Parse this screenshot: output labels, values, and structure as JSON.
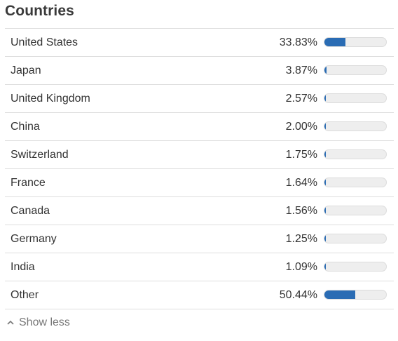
{
  "panel": {
    "title": "Countries",
    "toggle_label": "Show less",
    "toggle_icon": "chevron-up-icon",
    "accent_color": "#2a6cb4",
    "rows": [
      {
        "name": "United States",
        "percent": "33.83%",
        "share": 0.3383
      },
      {
        "name": "Japan",
        "percent": "3.87%",
        "share": 0.0387
      },
      {
        "name": "United Kingdom",
        "percent": "2.57%",
        "share": 0.0257
      },
      {
        "name": "China",
        "percent": "2.00%",
        "share": 0.02
      },
      {
        "name": "Switzerland",
        "percent": "1.75%",
        "share": 0.0175
      },
      {
        "name": "France",
        "percent": "1.64%",
        "share": 0.0164
      },
      {
        "name": "Canada",
        "percent": "1.56%",
        "share": 0.0156
      },
      {
        "name": "Germany",
        "percent": "1.25%",
        "share": 0.0125
      },
      {
        "name": "India",
        "percent": "1.09%",
        "share": 0.0109
      },
      {
        "name": "Other",
        "percent": "50.44%",
        "share": 0.5044
      }
    ]
  }
}
